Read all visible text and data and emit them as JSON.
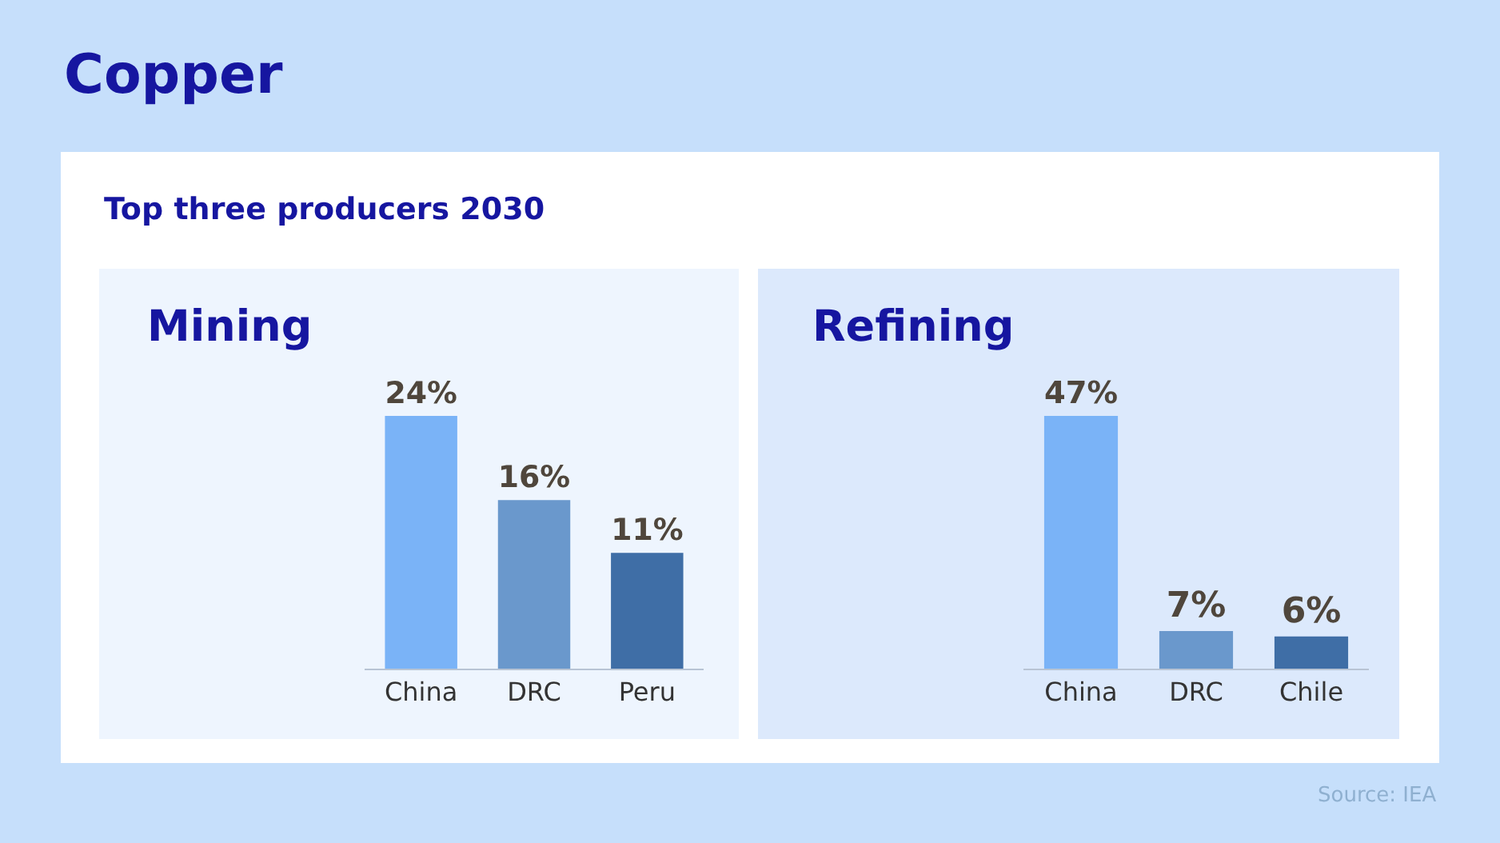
{
  "chart_data": [
    {
      "type": "other",
      "title": "Copper",
      "subtitle": "Top three producers 2030"
    },
    {
      "type": "bar",
      "title": "Mining",
      "categories": [
        "China",
        "DRC",
        "Peru"
      ],
      "values": [
        24,
        16,
        11
      ],
      "colors": [
        "#7ab3f7",
        "#6a98cc",
        "#3f6ea6"
      ],
      "value_labels": [
        "24%",
        "16%",
        "11%"
      ],
      "ylim": [
        0,
        24
      ]
    },
    {
      "type": "bar",
      "title": "Refining",
      "categories": [
        "China",
        "DRC",
        "Chile"
      ],
      "values": [
        47,
        7,
        6
      ],
      "colors": [
        "#7ab3f7",
        "#6a98cc",
        "#3f6ea6"
      ],
      "value_labels": [
        "47%",
        "7%",
        "6%"
      ],
      "ylim": [
        0,
        47
      ],
      "annotations": [
        "Source: IEA"
      ]
    }
  ]
}
